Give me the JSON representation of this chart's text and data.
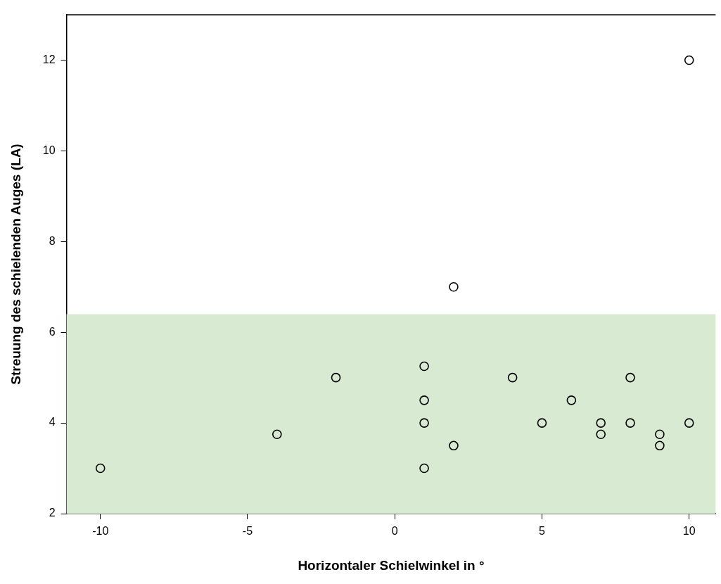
{
  "chart_data": {
    "type": "scatter",
    "xlabel": "Horizontaler Schielwinkel in °",
    "ylabel": "Streuung des schielenden Auges (LA)",
    "x": [
      -10,
      -4,
      -2,
      1,
      1,
      1,
      1,
      2,
      2,
      4,
      5,
      6,
      7,
      7,
      8,
      8,
      9,
      9,
      10,
      10
    ],
    "series": [
      {
        "color": "#000000",
        "values": [
          3,
          3.75,
          5,
          5.25,
          4.5,
          4,
          3,
          7,
          3.5,
          5,
          4,
          4.5,
          4,
          3.75,
          5,
          4,
          3.75,
          3.5,
          12,
          4
        ]
      }
    ],
    "xlim": [
      -11.15,
      10.9
    ],
    "ylim": [
      2,
      13
    ],
    "xticks": [
      -10,
      -5,
      0,
      5,
      10
    ],
    "yticks": [
      2,
      4,
      6,
      8,
      10,
      12
    ],
    "bands": [
      {
        "axis": "y",
        "from": 2,
        "to": 6.4,
        "color": "#d9ead3"
      }
    ],
    "marker": "circle",
    "grid": false,
    "legend": false
  }
}
